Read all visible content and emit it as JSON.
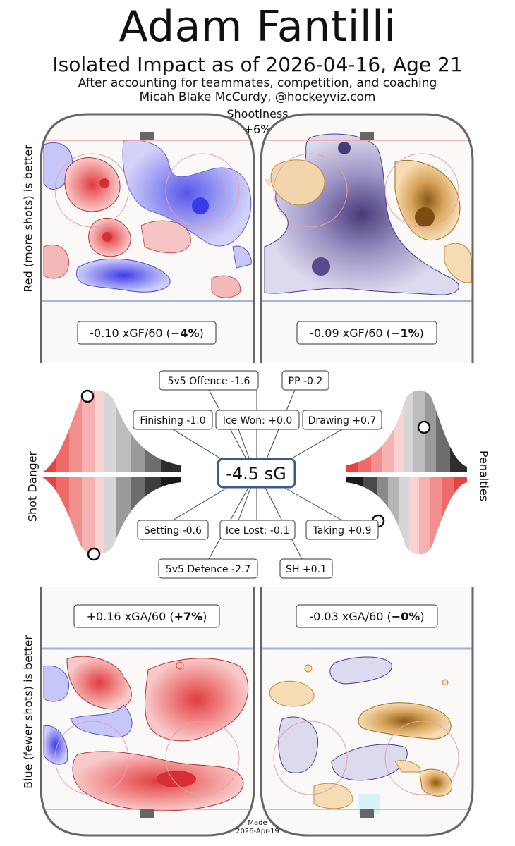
{
  "header": {
    "title": "Adam Fantilli",
    "subtitle": "Isolated Impact as of 2026-04-16, Age 21",
    "line3": "After accounting for teammates, competition, and coaching",
    "line4": "Micah Blake McCurdy, @hockeyviz.com",
    "shootiness_label": "Shootiness",
    "shootiness_value": "+6%"
  },
  "axis_labels": {
    "top_left": "Red (more shots) is better",
    "bottom_left": "Blue (fewer shots) is better",
    "shot_danger": "Shot Danger",
    "penalties": "Penalties"
  },
  "footer": {
    "made_label": "Made",
    "made_date": "2026-Apr-19"
  },
  "chart_data": {
    "type": "heatmap",
    "center_value": "-4.5 sG",
    "rinks": {
      "offence_5v5": {
        "label": "-0.10 xGF/60 (",
        "pct": "−4%",
        "close": ")"
      },
      "offence_pp": {
        "label": "-0.09 xGF/60 (",
        "pct": "−1%",
        "close": ")"
      },
      "defence_5v5": {
        "label": "+0.16 xGA/60 (",
        "pct": "+7%",
        "close": ")"
      },
      "defence_sh": {
        "label": "-0.03 xGA/60 (",
        "pct": "−0%",
        "close": ")"
      }
    },
    "components": {
      "offence_5v5": "5v5 Offence -1.6",
      "pp": "PP -0.2",
      "finishing": "Finishing -1.0",
      "ice_won": "Ice Won: +0.0",
      "drawing": "Drawing +0.7",
      "setting": "Setting -0.6",
      "ice_lost": "Ice Lost: -0.1",
      "taking": "Taking +0.9",
      "defence_5v5": "5v5 Defence -2.7",
      "sh": "SH +0.1"
    },
    "colors": {
      "more_shots": "#e8484a",
      "fewer_shots": "#7b7bef",
      "pp_more": "#c98a3a",
      "pp_fewer": "#5a4a8a",
      "rink_border": "#666666",
      "center_box": "#3b5a8c"
    }
  }
}
